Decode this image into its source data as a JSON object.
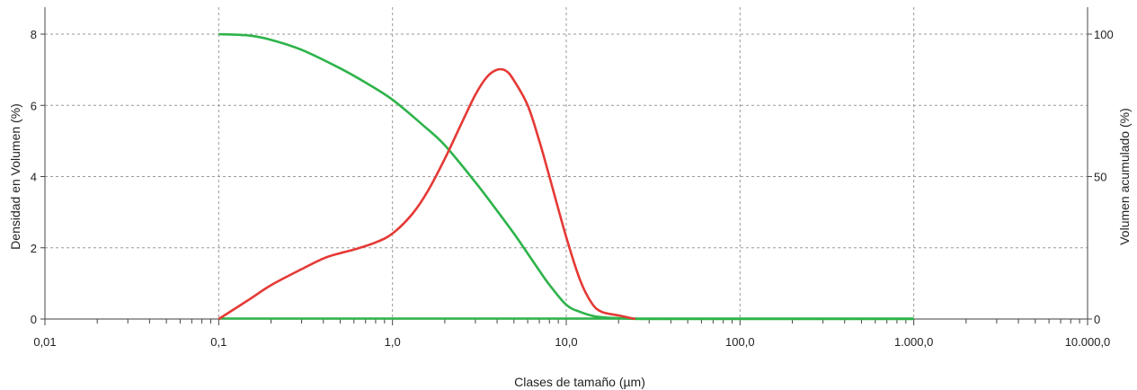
{
  "chart_data": {
    "type": "line",
    "title": "",
    "xlabel": "Clases de tamaño (µm)",
    "ylabel": "Densidad en Volumen (%)",
    "y2label": "Volumen acumulado (%)",
    "x_scale": "log",
    "xlim": [
      0.01,
      10000
    ],
    "ylim": [
      0,
      8
    ],
    "y2lim": [
      0,
      100
    ],
    "grid": true,
    "x_ticks": [
      {
        "value": 0.01,
        "label": "0,01"
      },
      {
        "value": 0.1,
        "label": "0,1"
      },
      {
        "value": 1,
        "label": "1,0"
      },
      {
        "value": 10,
        "label": "10,0"
      },
      {
        "value": 100,
        "label": "100,0"
      },
      {
        "value": 1000,
        "label": "1.000,0"
      },
      {
        "value": 10000,
        "label": "10.000,0"
      }
    ],
    "y_ticks": [
      {
        "value": 0,
        "label": "0"
      },
      {
        "value": 2,
        "label": "2"
      },
      {
        "value": 4,
        "label": "4"
      },
      {
        "value": 6,
        "label": "6"
      },
      {
        "value": 8,
        "label": "8"
      }
    ],
    "y2_ticks": [
      {
        "value": 0,
        "label": "0"
      },
      {
        "value": 50,
        "label": "50"
      },
      {
        "value": 100,
        "label": "100"
      }
    ],
    "series": [
      {
        "axis": "left",
        "color": "#e53935",
        "x": [
          0.1,
          0.15,
          0.2,
          0.3,
          0.4,
          0.5,
          0.6,
          0.8,
          1.0,
          1.3,
          1.6,
          2.0,
          2.5,
          3.0,
          3.5,
          4.0,
          4.5,
          5.0,
          6.0,
          7.0,
          8.0,
          10.0,
          12.0,
          14.0,
          16.0,
          20.0,
          25.0
        ],
        "y": [
          0.0,
          0.55,
          0.95,
          1.4,
          1.7,
          1.85,
          1.95,
          2.15,
          2.4,
          2.95,
          3.6,
          4.5,
          5.5,
          6.3,
          6.8,
          7.0,
          6.97,
          6.7,
          6.0,
          5.0,
          4.0,
          2.3,
          1.1,
          0.45,
          0.2,
          0.1,
          0.0
        ]
      },
      {
        "axis": "right",
        "color": "#2db34a",
        "x": [
          0.1,
          0.15,
          0.2,
          0.3,
          0.5,
          0.7,
          1.0,
          1.5,
          2.0,
          3.0,
          4.0,
          5.0,
          6.0,
          7.0,
          8.0,
          10.0,
          12.0,
          15.0,
          20.0,
          30.0,
          100.0,
          1000.0
        ],
        "y": [
          100,
          99.5,
          98,
          94.5,
          88,
          83,
          77,
          68,
          61,
          48,
          38,
          30,
          23,
          17,
          12,
          5,
          2.5,
          0.8,
          0.3,
          0,
          0,
          0
        ]
      }
    ]
  }
}
